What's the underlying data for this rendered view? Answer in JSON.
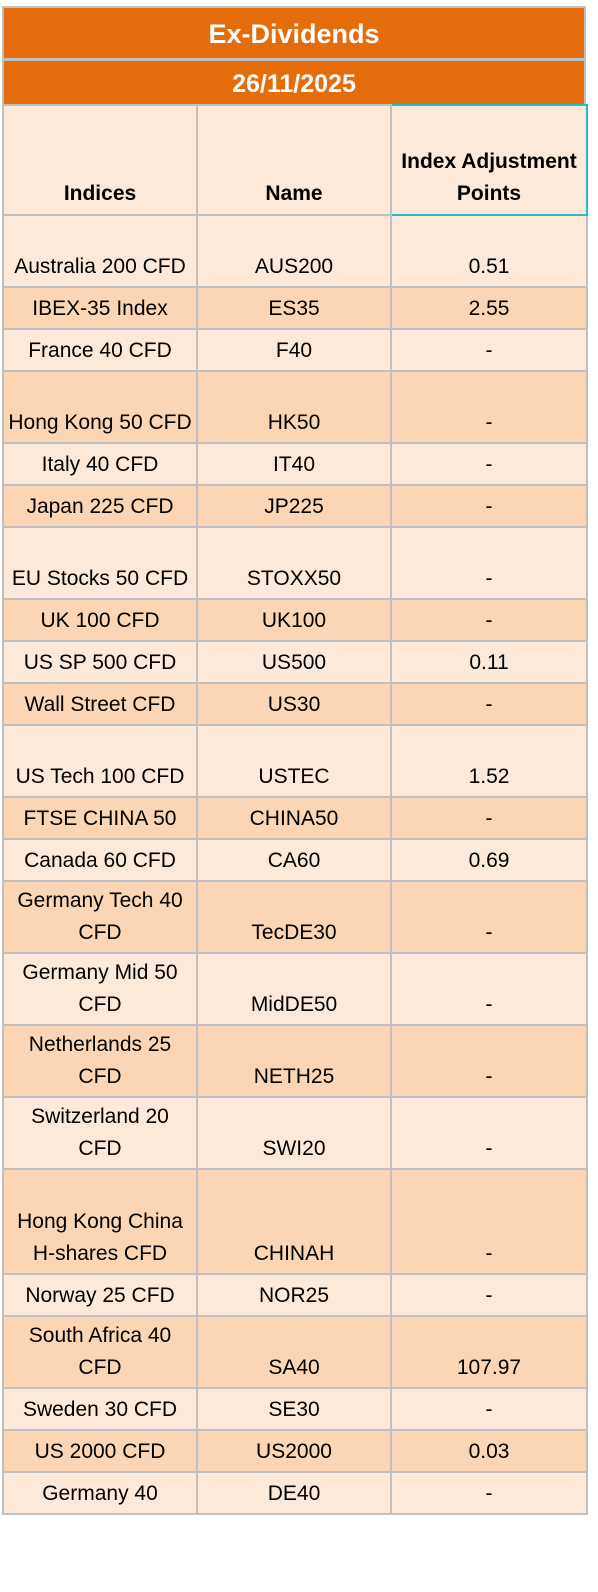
{
  "title": "Ex-Dividends",
  "date": "26/11/2025",
  "headers": {
    "indices": "Indices",
    "name": "Name",
    "adjustment": "Index Adjustment Points"
  },
  "rows": [
    {
      "index": "Australia 200 CFD",
      "name": "AUS200",
      "points": "0.51"
    },
    {
      "index": "IBEX-35 Index",
      "name": "ES35",
      "points": "2.55"
    },
    {
      "index": "France 40 CFD",
      "name": "F40",
      "points": "-"
    },
    {
      "index": "Hong Kong 50 CFD",
      "name": "HK50",
      "points": "-"
    },
    {
      "index": "Italy 40 CFD",
      "name": "IT40",
      "points": "-"
    },
    {
      "index": "Japan 225 CFD",
      "name": "JP225",
      "points": "-"
    },
    {
      "index": "EU Stocks 50 CFD",
      "name": "STOXX50",
      "points": "-"
    },
    {
      "index": "UK 100 CFD",
      "name": "UK100",
      "points": "-"
    },
    {
      "index": "US SP 500 CFD",
      "name": "US500",
      "points": "0.11"
    },
    {
      "index": "Wall Street CFD",
      "name": "US30",
      "points": "-"
    },
    {
      "index": "US Tech 100 CFD",
      "name": "USTEC",
      "points": "1.52"
    },
    {
      "index": "FTSE CHINA 50",
      "name": "CHINA50",
      "points": "-"
    },
    {
      "index": "Canada 60 CFD",
      "name": "CA60",
      "points": "0.69"
    },
    {
      "index": "Germany Tech 40 CFD",
      "name": "TecDE30",
      "points": "-"
    },
    {
      "index": "Germany Mid 50 CFD",
      "name": "MidDE50",
      "points": "-"
    },
    {
      "index": "Netherlands 25 CFD",
      "name": "NETH25",
      "points": "-"
    },
    {
      "index": "Switzerland 20 CFD",
      "name": "SWI20",
      "points": "-"
    },
    {
      "index": "Hong Kong China H-shares CFD",
      "name": "CHINAH",
      "points": "-"
    },
    {
      "index": "Norway 25 CFD",
      "name": "NOR25",
      "points": "-"
    },
    {
      "index": "South Africa 40 CFD",
      "name": "SA40",
      "points": "107.97"
    },
    {
      "index": "Sweden 30 CFD",
      "name": "SE30",
      "points": "-"
    },
    {
      "index": "US 2000 CFD",
      "name": "US2000",
      "points": "0.03"
    },
    {
      "index": "Germany 40",
      "name": "DE40",
      "points": "-"
    }
  ]
}
